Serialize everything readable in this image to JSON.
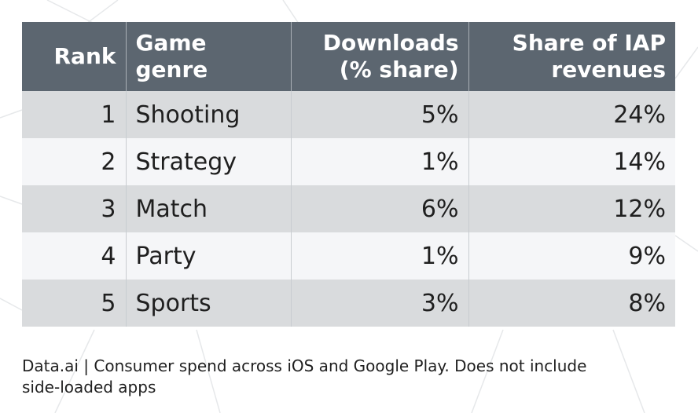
{
  "chart_data": {
    "type": "table",
    "columns": [
      "Rank",
      "Game genre",
      "Downloads (% share)",
      "Share of IAP revenues"
    ],
    "header": {
      "rank": "Rank",
      "genre": "Game genre",
      "downloads_line1": "Downloads",
      "downloads_line2": "(% share)",
      "iap_line1": "Share of IAP",
      "iap_line2": "revenues"
    },
    "rows": [
      {
        "rank": "1",
        "genre": "Shooting",
        "downloads": "5%",
        "iap": "24%"
      },
      {
        "rank": "2",
        "genre": "Strategy",
        "downloads": "1%",
        "iap": "14%"
      },
      {
        "rank": "3",
        "genre": "Match",
        "downloads": "6%",
        "iap": "12%"
      },
      {
        "rank": "4",
        "genre": "Party",
        "downloads": "1%",
        "iap": "9%"
      },
      {
        "rank": "5",
        "genre": "Sports",
        "downloads": "3%",
        "iap": "8%"
      }
    ],
    "colors": {
      "header_bg": "#5c6670",
      "header_text": "#ffffff",
      "row_odd": "#d9dbdd",
      "row_even": "#f5f6f8"
    }
  },
  "source": {
    "line1": "Data.ai | Consumer spend across iOS and Google Play. Does not include",
    "line2": "side-loaded apps"
  }
}
